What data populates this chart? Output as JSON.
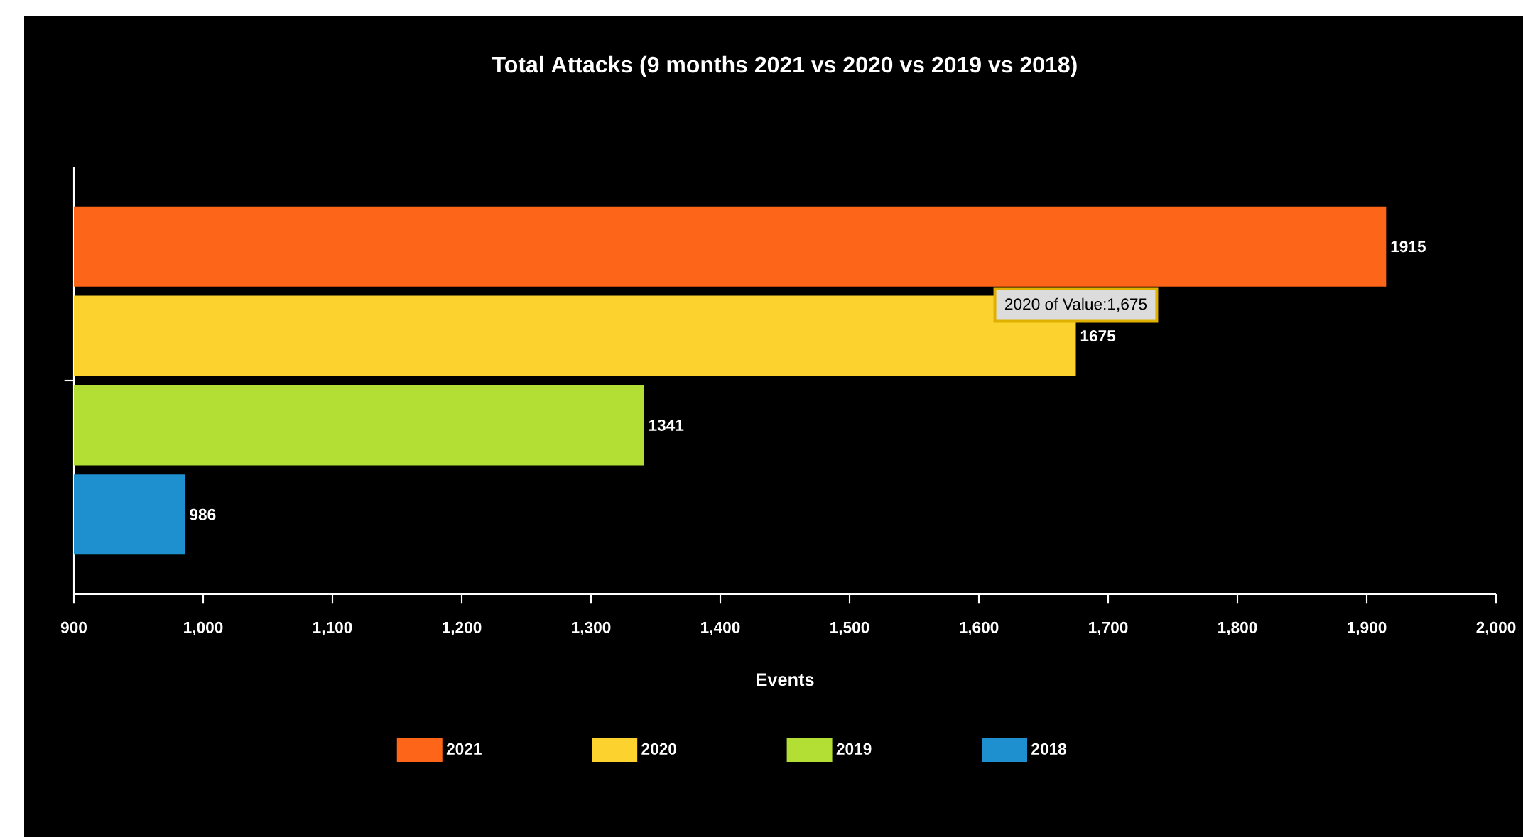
{
  "chart_data": {
    "type": "bar",
    "orientation": "horizontal",
    "title": "Total Attacks (9 months 2021 vs 2020 vs 2019 vs 2018)",
    "xlabel": "Events",
    "categories": [
      null
    ],
    "series": [
      {
        "name": "2021",
        "color": "#fd6519",
        "values": [
          1915
        ]
      },
      {
        "name": "2020",
        "color": "#fcd22e",
        "values": [
          1675
        ]
      },
      {
        "name": "2019",
        "color": "#b3df35",
        "values": [
          1341
        ]
      },
      {
        "name": "2018",
        "color": "#1e8fcf",
        "values": [
          986
        ]
      }
    ],
    "xlim": [
      900,
      2000
    ],
    "xticks": [
      {
        "value": 900,
        "label": "900"
      },
      {
        "value": 1000,
        "label": "1,000"
      },
      {
        "value": 1100,
        "label": "1,100"
      },
      {
        "value": 1200,
        "label": "1,200"
      },
      {
        "value": 1300,
        "label": "1,300"
      },
      {
        "value": 1400,
        "label": "1,400"
      },
      {
        "value": 1500,
        "label": "1,500"
      },
      {
        "value": 1600,
        "label": "1,600"
      },
      {
        "value": 1700,
        "label": "1,700"
      },
      {
        "value": 1800,
        "label": "1,800"
      },
      {
        "value": 1900,
        "label": "1,900"
      },
      {
        "value": 2000,
        "label": "2,000"
      }
    ],
    "data_labels": true,
    "legend": "bottom",
    "annotations": [
      {
        "text": "2020 of Value:1,675",
        "x": 1675
      }
    ]
  }
}
